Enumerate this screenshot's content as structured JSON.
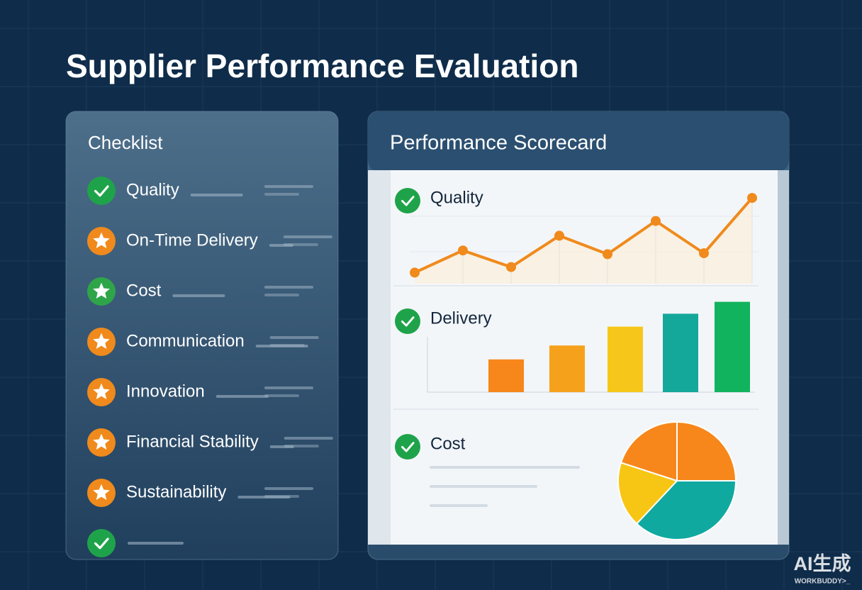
{
  "header": {
    "title": "Supplier Performance Evaluation"
  },
  "checklist": {
    "title": "Checklist",
    "items": [
      {
        "label": "Quality",
        "icon": "check",
        "color": "#1fa34a"
      },
      {
        "label": "On-Time Delivery",
        "icon": "star",
        "color": "#f08a1c"
      },
      {
        "label": "Cost",
        "icon": "star",
        "color": "#2fa54a"
      },
      {
        "label": "Communication",
        "icon": "star",
        "color": "#f08a1c"
      },
      {
        "label": "Innovation",
        "icon": "star",
        "color": "#f08a1c"
      },
      {
        "label": "Financial Stability",
        "icon": "star",
        "color": "#f08a1c"
      },
      {
        "label": "Sustainability",
        "icon": "star",
        "color": "#f08a1c"
      },
      {
        "icon": "check",
        "color": "#1fa34a"
      }
    ]
  },
  "scorecard": {
    "title": "Performance Scorecard",
    "sections": [
      {
        "label": "Quality",
        "chart": {
          "type": "line",
          "color": "#f08a1c",
          "ylim": [
            0,
            100
          ],
          "values": [
            12,
            36,
            18,
            52,
            32,
            68,
            33,
            93
          ]
        }
      },
      {
        "label": "Delivery",
        "chart": {
          "type": "bar",
          "ylim": [
            0,
            100
          ],
          "values": [
            33,
            47,
            66,
            79,
            91
          ],
          "colors": [
            "#f7871a",
            "#f6a11c",
            "#f6c71a",
            "#14a89b",
            "#12b35e"
          ]
        }
      },
      {
        "label": "Cost",
        "chart": {
          "type": "pie",
          "values": [
            25,
            37,
            18,
            20
          ],
          "colors": [
            "#f7871a",
            "#0fa9a0",
            "#f7c514",
            "#f7871a"
          ]
        }
      }
    ]
  },
  "watermark": {
    "main": "AI生成",
    "sub": "WORKBUDDY>_"
  }
}
